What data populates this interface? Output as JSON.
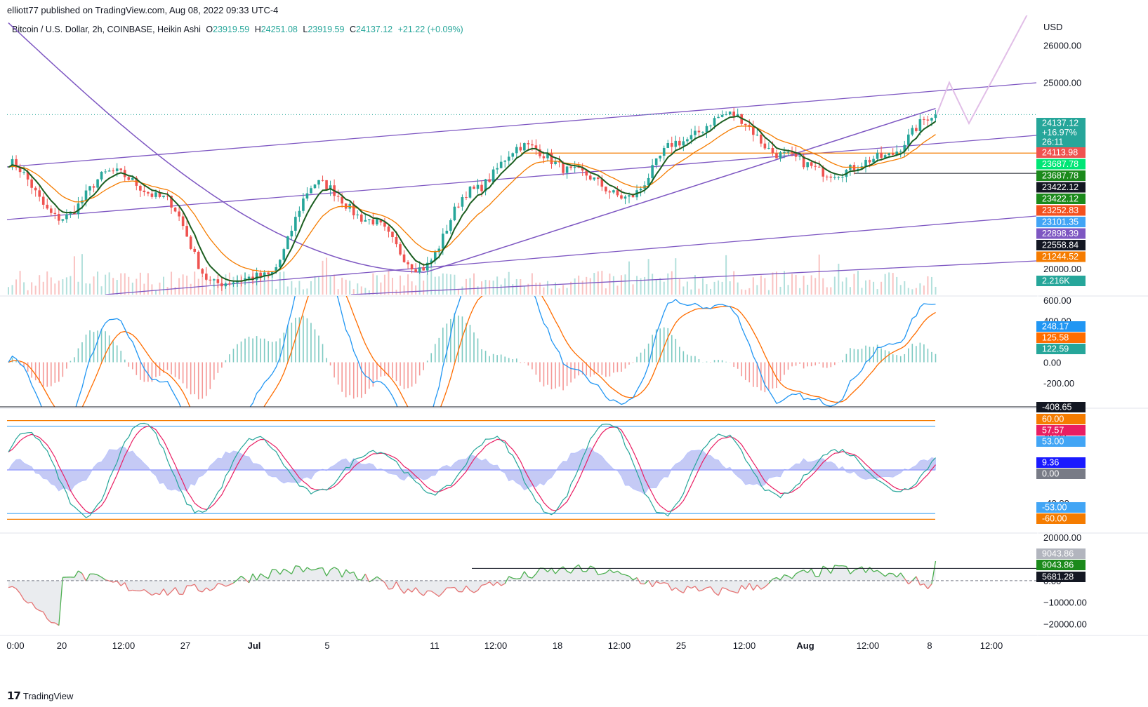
{
  "header": {
    "published_by": "elliott77 published on TradingView.com, Aug 08, 2022 09:33 UTC-4",
    "symbol_line": "Bitcoin / U.S. Dollar, 2h, COINBASE, Heikin Ashi",
    "ohlc": [
      {
        "label": "O",
        "value": "23919.59"
      },
      {
        "label": "H",
        "value": "24251.08"
      },
      {
        "label": "L",
        "value": "23919.59"
      },
      {
        "label": "C",
        "value": "24137.12"
      },
      {
        "label": "",
        "value": "+21.22 (+0.09%)"
      }
    ]
  },
  "branding": {
    "name": "TradingView",
    "logo": "tradingview-logo-icon"
  },
  "colors": {
    "bull": "#26a69a",
    "bear": "#ef5350",
    "channel": "#7e57c2",
    "ma_orange": "#f57c00",
    "macd_blue": "#2196f3",
    "macd_orange": "#ff6d00",
    "projection": "#e1bee7",
    "grid": "#e0e3eb"
  },
  "x_axis": {
    "ticks": [
      "0:00",
      "20",
      "12:00",
      "27",
      "Jul",
      "5",
      "11",
      "12:00",
      "18",
      "12:00",
      "25",
      "12:00",
      "Aug",
      "12:00",
      "8",
      "12:00"
    ]
  },
  "chart_data": [
    {
      "type": "candlestick",
      "pane": "price",
      "price_axis": {
        "unit": "USD",
        "ticks": [
          "26000.00",
          "25000.00",
          "20000.00"
        ],
        "ylim": [
          19300,
          26800
        ]
      },
      "badges": [
        {
          "label": "24137.12",
          "color": "#26a69a"
        },
        {
          "label": "+16.97%",
          "color": "#26a69a"
        },
        {
          "label": "26:11",
          "color": "#26a69a"
        },
        {
          "label": "24113.98",
          "color": "#ef5350"
        },
        {
          "label": "23687.78",
          "color": "#00e676"
        },
        {
          "label": "23687.78",
          "color": "#1b8a1b"
        },
        {
          "label": "23422.12",
          "color": "#131722"
        },
        {
          "label": "23422.12",
          "color": "#1b8a1b"
        },
        {
          "label": "23252.83",
          "color": "#f4511e"
        },
        {
          "label": "23101.35",
          "color": "#42a5f5"
        },
        {
          "label": "22898.39",
          "color": "#7e57c2"
        },
        {
          "label": "22558.84",
          "color": "#131722"
        },
        {
          "label": "21244.52",
          "color": "#f57c00"
        },
        {
          "label": "2.216K",
          "color": "#26a69a"
        }
      ],
      "price_path": [
        [
          "0:00",
          22850
        ],
        [
          "20",
          21350
        ],
        [
          "12:00",
          22600
        ],
        [
          "27",
          21900
        ],
        [
          "Jul",
          19600
        ],
        [
          "5",
          19800
        ],
        [
          "",
          22300
        ],
        [
          "11",
          21300
        ],
        [
          "12:00",
          20000
        ],
        [
          "18",
          22100
        ],
        [
          "12:00",
          23300
        ],
        [
          "25",
          22600
        ],
        [
          "",
          21900
        ],
        [
          "12:00",
          23400
        ],
        [
          "",
          24150
        ],
        [
          "Aug",
          23050
        ],
        [
          "12:00",
          22550
        ],
        [
          "",
          23000
        ],
        [
          "8",
          24137
        ]
      ],
      "horizontal_levels": [
        23101.35,
        22558.84
      ],
      "projection": [
        24137,
        25000,
        23900,
        25300,
        27000
      ]
    },
    {
      "type": "line",
      "pane": "macd",
      "axis_ticks": [
        "600.00",
        "400.00",
        "0.00",
        "-200.00"
      ],
      "ylim": [
        -430,
        640
      ],
      "values_shown": [
        {
          "label": "248.17",
          "color": "#2196f3"
        },
        {
          "label": "125.58",
          "color": "#ff6d00"
        },
        {
          "label": "122.59",
          "color": "#26a69a"
        },
        {
          "label": "-408.65",
          "color": "#131722"
        }
      ]
    },
    {
      "type": "line",
      "pane": "oscillator",
      "axis_ticks": [
        "40.00",
        "-40.00"
      ],
      "ylim": [
        -75,
        75
      ],
      "levels": [
        60,
        53,
        0,
        -53,
        -60
      ],
      "values_shown": [
        {
          "label": "60.00",
          "color": "#f57c00"
        },
        {
          "label": "57.57",
          "color": "#e91e63"
        },
        {
          "label": "53.00",
          "color": "#42a5f5"
        },
        {
          "label": "9.36",
          "color": "#1a1aff"
        },
        {
          "label": "0.00",
          "color": "#787b86"
        },
        {
          "label": "-53.00",
          "color": "#42a5f5"
        },
        {
          "label": "-60.00",
          "color": "#f57c00"
        }
      ]
    },
    {
      "type": "area",
      "pane": "volume-flow",
      "axis_ticks": [
        "20000.00",
        "0.00",
        "−10000.00",
        "−20000.00"
      ],
      "ylim": [
        -25000,
        22000
      ],
      "values_shown": [
        {
          "label": "9043.86",
          "color": "#b2b5be"
        },
        {
          "label": "9043.86",
          "color": "#1b8a1b"
        },
        {
          "label": "5681.28",
          "color": "#131722"
        }
      ]
    }
  ]
}
